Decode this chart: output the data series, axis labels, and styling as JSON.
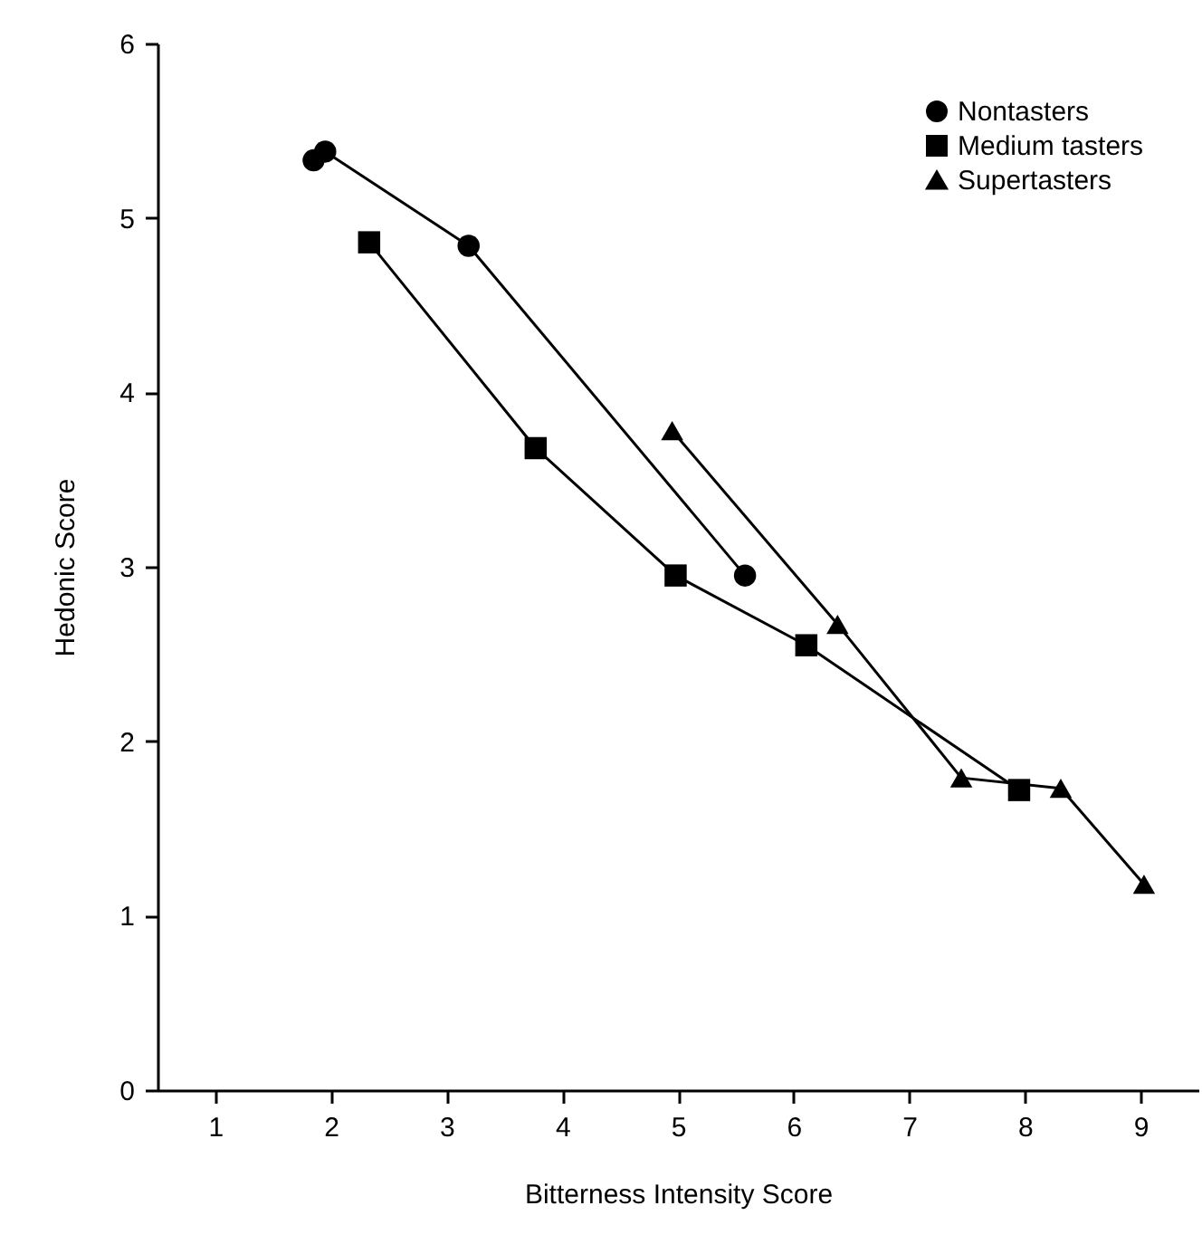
{
  "chart_data": {
    "type": "line",
    "xlabel": "Bitterness Intensity Score",
    "ylabel": "Hedonic Score",
    "xlim": [
      0.5,
      9.5
    ],
    "ylim": [
      0,
      6
    ],
    "xticks": [
      1,
      2,
      3,
      4,
      5,
      6,
      7,
      8,
      9
    ],
    "yticks": [
      0,
      1,
      2,
      3,
      4,
      5,
      6
    ],
    "grid": false,
    "legend": "top right",
    "line_style": "solid",
    "series": [
      {
        "name": "Nontasters",
        "color": "#000000",
        "marker": "circle",
        "x": [
          1.85,
          1.95,
          3.19,
          5.58
        ],
        "values": [
          5.33,
          5.38,
          4.84,
          2.95
        ]
      },
      {
        "name": "Medium tasters",
        "color": "#000000",
        "marker": "square",
        "x": [
          2.33,
          3.77,
          4.98,
          6.11,
          7.95
        ],
        "values": [
          4.86,
          3.68,
          2.95,
          2.55,
          1.72
        ]
      },
      {
        "name": "Supertasters",
        "color": "#000000",
        "marker": "triangle",
        "x": [
          4.95,
          6.38,
          7.45,
          8.31,
          9.03
        ],
        "values": [
          3.78,
          2.67,
          1.79,
          1.73,
          1.18
        ]
      }
    ]
  }
}
